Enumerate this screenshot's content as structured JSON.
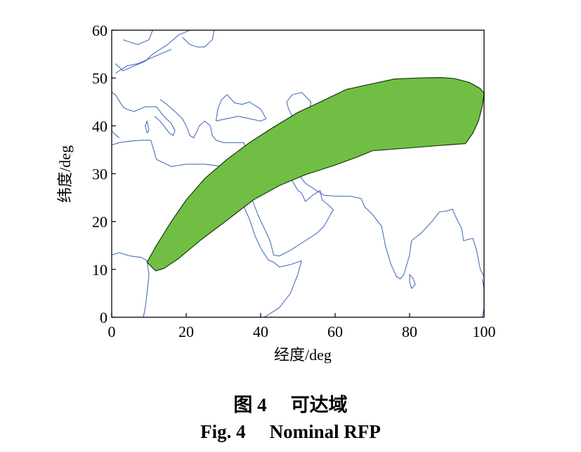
{
  "chart_data": {
    "type": "area",
    "xlabel": "经度/deg",
    "ylabel": "纬度/deg",
    "xlim": [
      0,
      100
    ],
    "ylim": [
      0,
      60
    ],
    "x_ticks": [
      0,
      20,
      40,
      60,
      80,
      100
    ],
    "y_ticks": [
      0,
      10,
      20,
      30,
      40,
      50,
      60
    ],
    "grid": false,
    "background_map": "coastlines",
    "colors": {
      "region_fill": "#70bf44",
      "region_stroke": "#1a3a10",
      "coastline": "#4b6ec0",
      "axis": "#000000"
    },
    "region": {
      "upper_boundary": [
        [
          9.5,
          11.5
        ],
        [
          12,
          15
        ],
        [
          16,
          20
        ],
        [
          20,
          24.5
        ],
        [
          25,
          29
        ],
        [
          31,
          33
        ],
        [
          37,
          36.5
        ],
        [
          43,
          39.5
        ],
        [
          50,
          42.8
        ],
        [
          56,
          45
        ],
        [
          63,
          47.6
        ],
        [
          70,
          48.8
        ],
        [
          76,
          49.8
        ],
        [
          82,
          50
        ],
        [
          88,
          50.1
        ],
        [
          92,
          49.9
        ],
        [
          96,
          49.1
        ],
        [
          99,
          47.8
        ],
        [
          100,
          46.8
        ]
      ],
      "lower_boundary": [
        [
          100,
          46.8
        ],
        [
          99.5,
          44
        ],
        [
          98.5,
          41
        ],
        [
          97,
          38.5
        ],
        [
          95,
          36.3
        ],
        [
          88,
          35.9
        ],
        [
          80,
          35.4
        ],
        [
          70,
          34.8
        ],
        [
          66,
          33.5
        ],
        [
          60,
          31.8
        ],
        [
          52,
          29.8
        ],
        [
          45,
          27.5
        ],
        [
          38,
          24.5
        ],
        [
          31,
          20.3
        ],
        [
          24,
          16.2
        ],
        [
          18,
          12.3
        ],
        [
          14,
          10.2
        ],
        [
          11.8,
          9.7
        ]
      ]
    },
    "coastlines": [
      [
        [
          3,
          58
        ],
        [
          7,
          57
        ],
        [
          10,
          58
        ],
        [
          11,
          60
        ]
      ],
      [
        [
          1,
          53
        ],
        [
          3,
          51.5
        ],
        [
          6,
          52.5
        ],
        [
          9,
          53.5
        ],
        [
          11,
          55
        ],
        [
          13,
          56
        ],
        [
          15,
          57
        ],
        [
          18,
          59
        ],
        [
          21,
          60
        ]
      ],
      [
        [
          1,
          51
        ],
        [
          2,
          51.5
        ],
        [
          4,
          52.5
        ],
        [
          7,
          53
        ],
        [
          10,
          54
        ],
        [
          13,
          55
        ],
        [
          16,
          56
        ]
      ],
      [
        [
          19,
          58.5
        ],
        [
          21,
          57
        ],
        [
          23,
          56.5
        ],
        [
          25,
          56.5
        ],
        [
          27,
          58
        ],
        [
          27.5,
          60
        ]
      ],
      [
        [
          0,
          47
        ],
        [
          1,
          46.5
        ],
        [
          3,
          44
        ],
        [
          4,
          43.5
        ],
        [
          6,
          43
        ],
        [
          9,
          44
        ],
        [
          12,
          44
        ],
        [
          14,
          42
        ],
        [
          16,
          40.5
        ],
        [
          17,
          39
        ],
        [
          16.5,
          38
        ],
        [
          15.5,
          38.5
        ],
        [
          13,
          41
        ],
        [
          11.5,
          42
        ]
      ],
      [
        [
          0,
          39
        ],
        [
          0.5,
          38.5
        ],
        [
          2,
          37.5
        ]
      ],
      [
        [
          9.5,
          38.5
        ],
        [
          10,
          39
        ],
        [
          9.5,
          41
        ],
        [
          9,
          40
        ],
        [
          9.5,
          38.5
        ]
      ],
      [
        [
          13,
          45.5
        ],
        [
          14,
          45
        ],
        [
          15.5,
          44
        ],
        [
          17,
          43
        ],
        [
          19,
          41.5
        ],
        [
          20,
          40
        ],
        [
          21,
          38
        ],
        [
          22,
          37.5
        ],
        [
          23,
          39
        ],
        [
          23.5,
          40
        ],
        [
          25,
          41
        ],
        [
          26.5,
          40
        ]
      ],
      [
        [
          26.5,
          40
        ],
        [
          27,
          38
        ],
        [
          28,
          37
        ],
        [
          30,
          36.5
        ],
        [
          33,
          36.5
        ],
        [
          35.5,
          36.5
        ],
        [
          36,
          35
        ],
        [
          35,
          33
        ],
        [
          34.5,
          31.5
        ],
        [
          32.5,
          31
        ]
      ],
      [
        [
          28,
          41
        ],
        [
          29,
          41.2
        ],
        [
          31,
          41.5
        ],
        [
          34,
          42
        ],
        [
          37,
          41.5
        ],
        [
          40,
          41
        ],
        [
          41.5,
          41.5
        ],
        [
          40,
          43.5
        ],
        [
          38,
          44.5
        ],
        [
          37,
          45
        ],
        [
          35,
          44.5
        ],
        [
          33,
          44.8
        ],
        [
          31,
          46.5
        ],
        [
          29.5,
          45.5
        ],
        [
          28.5,
          43.5
        ],
        [
          28,
          41
        ]
      ],
      [
        [
          32.5,
          31
        ],
        [
          30,
          31.5
        ],
        [
          25,
          32
        ],
        [
          20,
          32
        ],
        [
          16,
          31.5
        ],
        [
          12,
          33
        ],
        [
          10.5,
          37
        ],
        [
          8,
          37
        ],
        [
          5,
          36.8
        ],
        [
          2,
          36.5
        ],
        [
          0,
          36
        ]
      ],
      [
        [
          0,
          13
        ],
        [
          2,
          13.5
        ],
        [
          5,
          12.8
        ],
        [
          8,
          12.5
        ],
        [
          9.5,
          11.8
        ],
        [
          10,
          9
        ],
        [
          9.5,
          5
        ],
        [
          9,
          2
        ],
        [
          8.5,
          0
        ]
      ],
      [
        [
          32.5,
          31
        ],
        [
          33.5,
          28
        ],
        [
          35,
          24
        ],
        [
          37,
          20.5
        ],
        [
          38.5,
          17
        ],
        [
          40,
          14.5
        ],
        [
          42,
          12
        ],
        [
          43.5,
          11.5
        ],
        [
          45,
          10.5
        ],
        [
          48,
          11
        ],
        [
          51,
          11.8
        ],
        [
          50,
          9
        ],
        [
          48,
          5
        ],
        [
          45,
          2
        ],
        [
          41,
          0
        ]
      ],
      [
        [
          34.5,
          29
        ],
        [
          37,
          26
        ],
        [
          39.5,
          21
        ],
        [
          42.5,
          16
        ],
        [
          43.5,
          13
        ],
        [
          45,
          12.8
        ],
        [
          48,
          14
        ],
        [
          52,
          16
        ],
        [
          55,
          17.5
        ],
        [
          57,
          19
        ],
        [
          59.5,
          22.5
        ],
        [
          58,
          23.6
        ],
        [
          56.5,
          24.5
        ],
        [
          56,
          26.5
        ],
        [
          54,
          25.5
        ],
        [
          52,
          24.2
        ],
        [
          51,
          26
        ],
        [
          50,
          26.5
        ],
        [
          48.5,
          28.5
        ],
        [
          48,
          30
        ],
        [
          50,
          30
        ],
        [
          52,
          28
        ],
        [
          55,
          26.5
        ],
        [
          57,
          25.5
        ],
        [
          60,
          25.3
        ],
        [
          64,
          25.3
        ],
        [
          67,
          24.8
        ],
        [
          68,
          23
        ],
        [
          70,
          21.5
        ],
        [
          72.5,
          19
        ],
        [
          73.5,
          15
        ],
        [
          75,
          11
        ],
        [
          76.5,
          8.5
        ],
        [
          77.5,
          8
        ],
        [
          78.5,
          9
        ],
        [
          80,
          13
        ],
        [
          80.5,
          16
        ],
        [
          83,
          17.5
        ],
        [
          86,
          20
        ],
        [
          88,
          22
        ],
        [
          90,
          22.2
        ],
        [
          91.5,
          22.6
        ],
        [
          92.5,
          20.8
        ],
        [
          94,
          18.5
        ],
        [
          94.5,
          16
        ],
        [
          97,
          16.5
        ],
        [
          98,
          14
        ],
        [
          99,
          10
        ],
        [
          100,
          8.5
        ]
      ],
      [
        [
          80,
          9
        ],
        [
          81,
          8
        ],
        [
          81.5,
          6.8
        ],
        [
          80.5,
          6
        ],
        [
          80,
          7.5
        ],
        [
          80,
          9
        ]
      ],
      [
        [
          99.5,
          8
        ],
        [
          100,
          6
        ],
        [
          100,
          2
        ],
        [
          99.5,
          0
        ]
      ],
      [
        [
          34.5,
          29
        ],
        [
          35,
          32
        ],
        [
          35.5,
          33.5
        ]
      ],
      [
        [
          47,
          45
        ],
        [
          48.5,
          46.5
        ],
        [
          51,
          47
        ],
        [
          53.5,
          45
        ],
        [
          53,
          42
        ],
        [
          52.5,
          41
        ],
        [
          53,
          39.5
        ],
        [
          54,
          37.5
        ],
        [
          52,
          37
        ],
        [
          50.5,
          37
        ],
        [
          49,
          38
        ],
        [
          49.5,
          40
        ],
        [
          48.5,
          42
        ],
        [
          47.5,
          43.5
        ],
        [
          47,
          45
        ]
      ],
      [
        [
          58.5,
          46
        ],
        [
          60.5,
          45.5
        ],
        [
          61.5,
          44.5
        ],
        [
          61,
          43.5
        ],
        [
          59.5,
          43.7
        ],
        [
          58.5,
          44.5
        ],
        [
          58.5,
          46
        ]
      ]
    ]
  },
  "figure_caption_cn": {
    "number": "图 4",
    "title": "可达域"
  },
  "figure_caption_en": {
    "number": "Fig. 4",
    "title": "Nominal RFP"
  }
}
